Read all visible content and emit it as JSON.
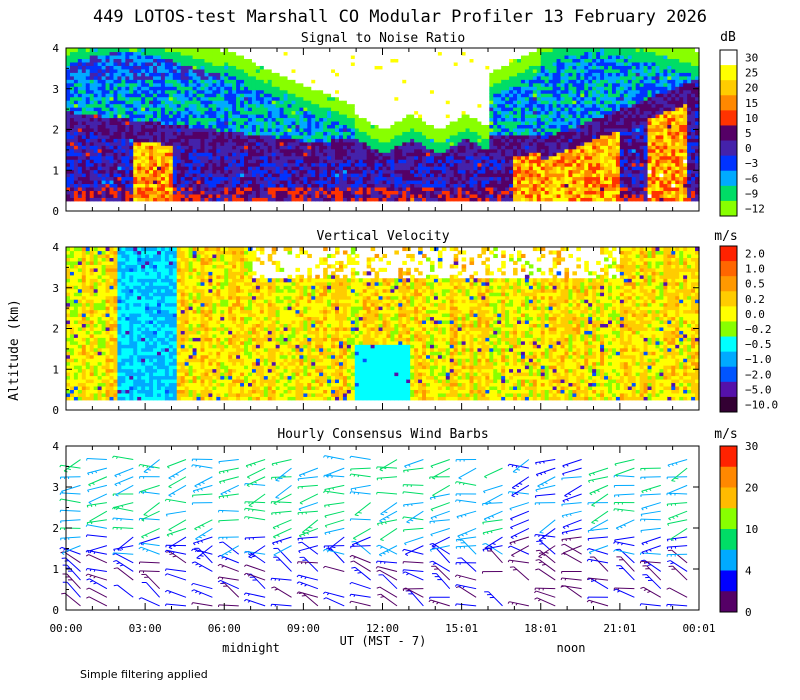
{
  "page_title": "449 LOTOS-test Marshall CO Modular Profiler 13 February 2026",
  "footer_note": "Simple filtering applied",
  "chart_data": [
    {
      "type": "heatmap",
      "title": "Signal to Noise Ratio",
      "ylabel": "Altitude (km)",
      "ylim": [
        0,
        4
      ],
      "y_ticks": [
        "0",
        "1",
        "2",
        "3",
        "4"
      ],
      "xlim": [
        0,
        24
      ],
      "x_ticks": [
        "00:00",
        "03:00",
        "06:00",
        "09:00",
        "12:00",
        "15:01",
        "18:01",
        "21:01",
        "00:01"
      ],
      "x_sublabels": {
        "left": "midnight",
        "center": "UT  (MST - 7)",
        "right": "noon"
      },
      "colorbar_unit": "dB",
      "colorbar_labels": [
        "30",
        "25",
        "20",
        "15",
        "10",
        "5",
        "0",
        "−3",
        "−6",
        "−9",
        "−12"
      ],
      "colorbar_colors": [
        "#ffffff",
        "#ffff00",
        "#ffcc00",
        "#ff8800",
        "#ff3300",
        "#550066",
        "#4422aa",
        "#0033ff",
        "#00aaff",
        "#00dd66",
        "#88ff00"
      ]
    },
    {
      "type": "heatmap",
      "title": "Vertical Velocity",
      "ylabel": "Altitude (km)",
      "ylim": [
        0,
        4
      ],
      "y_ticks": [
        "0",
        "1",
        "2",
        "3",
        "4"
      ],
      "xlim": [
        0,
        24
      ],
      "colorbar_unit": "m/s",
      "colorbar_labels": [
        "2.0",
        "1.0",
        "0.5",
        "0.2",
        "0.0",
        "−0.2",
        "−0.5",
        "−1.0",
        "−2.0",
        "−5.0",
        "−10.0"
      ],
      "colorbar_colors": [
        "#ff2200",
        "#ff6600",
        "#ff9900",
        "#ffcc00",
        "#ffff00",
        "#88ff00",
        "#00ffff",
        "#00aaff",
        "#0055ff",
        "#5511aa",
        "#330033"
      ]
    },
    {
      "type": "wind_barbs",
      "title": "Hourly Consensus Wind Barbs",
      "ylim": [
        0,
        4
      ],
      "y_ticks": [
        "0",
        "1",
        "2",
        "3",
        "4"
      ],
      "xlim": [
        0,
        24
      ],
      "hours": [
        0,
        1,
        2,
        3,
        4,
        5,
        6,
        7,
        8,
        9,
        10,
        11,
        12,
        13,
        14,
        15,
        16,
        17,
        18,
        19,
        20,
        21,
        22,
        23
      ],
      "colorbar_unit": "m/s",
      "colorbar_labels": [
        "30",
        "20",
        "10",
        "4",
        "0"
      ],
      "colorbar_colors": [
        "#ff2200",
        "#ff8800",
        "#ffbb00",
        "#88ff00",
        "#00dd66",
        "#00aaff",
        "#0000ff",
        "#550066"
      ]
    }
  ]
}
